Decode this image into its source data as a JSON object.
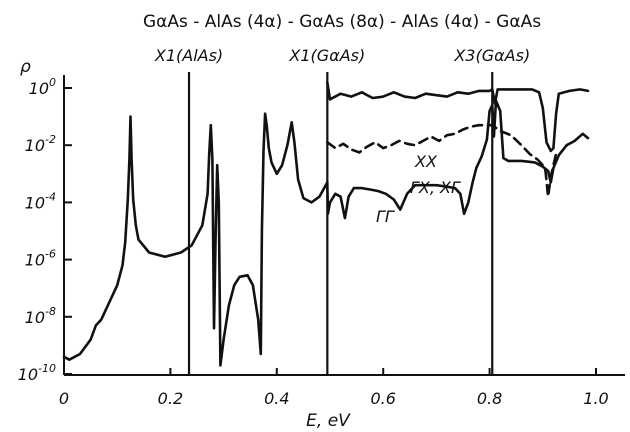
{
  "chart_data": {
    "type": "line",
    "title": "GαAs - AlAs (4α) - GαAs (8α) - AlAs (4α) - GαAs",
    "xlabel": "E, eV",
    "ylabel": "ρ",
    "xlim": [
      0,
      1.0
    ],
    "ylim_log10": [
      -10,
      0
    ],
    "y_scale": "log",
    "x_ticks": [
      {
        "value": 0,
        "label": "0"
      },
      {
        "value": 0.2,
        "label": "0.2"
      },
      {
        "value": 0.4,
        "label": "0.4"
      },
      {
        "value": 0.6,
        "label": "0.6"
      },
      {
        "value": 0.8,
        "label": "0.8"
      },
      {
        "value": 1.0,
        "label": "1.0"
      }
    ],
    "y_ticks": [
      {
        "exp": 0,
        "base": "10",
        "sup": "0"
      },
      {
        "exp": -2,
        "base": "10",
        "sup": "-2"
      },
      {
        "exp": -4,
        "base": "10",
        "sup": "-4"
      },
      {
        "exp": -6,
        "base": "10",
        "sup": "-6"
      },
      {
        "exp": -8,
        "base": "10",
        "sup": "-8"
      },
      {
        "exp": -10,
        "base": "10",
        "sup": "-10"
      }
    ],
    "vertical_lines": [
      {
        "x": 0.235,
        "label": "X1(AlAs)"
      },
      {
        "x": 0.495,
        "label": "X1(GαAs)"
      },
      {
        "x": 0.805,
        "label": "X3(GαAs)"
      }
    ],
    "annotations": [
      "XX",
      "ΓX, XΓ",
      "ΓΓ"
    ],
    "series": [
      {
        "name": "ΓΓ",
        "style": "solid",
        "points": [
          [
            0.0,
            -9.4
          ],
          [
            0.01,
            -9.5
          ],
          [
            0.03,
            -9.3
          ],
          [
            0.05,
            -8.8
          ],
          [
            0.06,
            -8.3
          ],
          [
            0.07,
            -8.1
          ],
          [
            0.085,
            -7.5
          ],
          [
            0.1,
            -6.9
          ],
          [
            0.11,
            -6.2
          ],
          [
            0.115,
            -5.4
          ],
          [
            0.12,
            -3.9
          ],
          [
            0.123,
            -2.5
          ],
          [
            0.125,
            -1.0
          ],
          [
            0.127,
            -2.5
          ],
          [
            0.13,
            -3.9
          ],
          [
            0.135,
            -4.8
          ],
          [
            0.14,
            -5.3
          ],
          [
            0.16,
            -5.75
          ],
          [
            0.19,
            -5.9
          ],
          [
            0.22,
            -5.75
          ],
          [
            0.24,
            -5.5
          ],
          [
            0.26,
            -4.8
          ],
          [
            0.27,
            -3.7
          ],
          [
            0.273,
            -2.3
          ],
          [
            0.276,
            -1.3
          ],
          [
            0.279,
            -2.5
          ],
          [
            0.282,
            -8.4
          ],
          [
            0.285,
            -5.2
          ],
          [
            0.288,
            -2.7
          ],
          [
            0.291,
            -4.0
          ],
          [
            0.294,
            -9.7
          ],
          [
            0.3,
            -8.8
          ],
          [
            0.31,
            -7.6
          ],
          [
            0.32,
            -6.9
          ],
          [
            0.33,
            -6.6
          ],
          [
            0.345,
            -6.55
          ],
          [
            0.355,
            -6.9
          ],
          [
            0.365,
            -8.1
          ],
          [
            0.37,
            -9.3
          ],
          [
            0.372,
            -5.0
          ],
          [
            0.375,
            -2.2
          ],
          [
            0.378,
            -0.9
          ],
          [
            0.381,
            -1.3
          ],
          [
            0.385,
            -2.1
          ],
          [
            0.39,
            -2.6
          ],
          [
            0.4,
            -3.0
          ],
          [
            0.41,
            -2.7
          ],
          [
            0.42,
            -2.0
          ],
          [
            0.428,
            -1.2
          ],
          [
            0.433,
            -1.9
          ],
          [
            0.44,
            -3.2
          ],
          [
            0.45,
            -3.85
          ],
          [
            0.465,
            -4.0
          ],
          [
            0.48,
            -3.8
          ],
          [
            0.495,
            -3.3
          ],
          [
            0.496,
            -4.4
          ],
          [
            0.5,
            -4.0
          ],
          [
            0.51,
            -3.7
          ],
          [
            0.52,
            -3.8
          ],
          [
            0.528,
            -4.55
          ],
          [
            0.535,
            -3.8
          ],
          [
            0.545,
            -3.5
          ],
          [
            0.56,
            -3.5
          ],
          [
            0.575,
            -3.55
          ],
          [
            0.59,
            -3.6
          ],
          [
            0.605,
            -3.7
          ],
          [
            0.62,
            -3.9
          ],
          [
            0.632,
            -4.25
          ],
          [
            0.645,
            -3.7
          ],
          [
            0.66,
            -3.4
          ],
          [
            0.68,
            -3.4
          ],
          [
            0.7,
            -3.4
          ],
          [
            0.72,
            -3.45
          ],
          [
            0.735,
            -3.5
          ],
          [
            0.745,
            -3.7
          ],
          [
            0.752,
            -4.4
          ],
          [
            0.76,
            -4.0
          ],
          [
            0.768,
            -3.3
          ],
          [
            0.775,
            -2.8
          ],
          [
            0.785,
            -2.4
          ],
          [
            0.795,
            -1.8
          ],
          [
            0.8,
            -0.8
          ],
          [
            0.805,
            -0.6
          ],
          [
            0.808,
            -1.7
          ],
          [
            0.812,
            -0.45
          ],
          [
            0.82,
            -0.8
          ],
          [
            0.826,
            -2.45
          ],
          [
            0.835,
            -2.55
          ],
          [
            0.86,
            -2.55
          ],
          [
            0.885,
            -2.6
          ],
          [
            0.9,
            -2.75
          ],
          [
            0.91,
            -2.9
          ],
          [
            0.915,
            -3.3
          ],
          [
            0.92,
            -2.8
          ],
          [
            0.93,
            -2.35
          ],
          [
            0.945,
            -2.0
          ],
          [
            0.96,
            -1.85
          ],
          [
            0.975,
            -1.6
          ],
          [
            0.985,
            -1.75
          ]
        ]
      },
      {
        "name": "XX",
        "style": "solid",
        "points": [
          [
            0.495,
            0.2
          ],
          [
            0.5,
            -0.4
          ],
          [
            0.52,
            -0.2
          ],
          [
            0.54,
            -0.3
          ],
          [
            0.56,
            -0.15
          ],
          [
            0.58,
            -0.35
          ],
          [
            0.6,
            -0.3
          ],
          [
            0.62,
            -0.15
          ],
          [
            0.64,
            -0.3
          ],
          [
            0.66,
            -0.35
          ],
          [
            0.68,
            -0.2
          ],
          [
            0.7,
            -0.25
          ],
          [
            0.72,
            -0.3
          ],
          [
            0.74,
            -0.15
          ],
          [
            0.76,
            -0.2
          ],
          [
            0.78,
            -0.1
          ],
          [
            0.8,
            -0.1
          ],
          [
            0.805,
            -0.05
          ],
          [
            0.81,
            -0.55
          ],
          [
            0.815,
            -0.05
          ],
          [
            0.83,
            -0.05
          ],
          [
            0.86,
            -0.05
          ],
          [
            0.88,
            -0.05
          ],
          [
            0.893,
            -0.15
          ],
          [
            0.9,
            -0.7
          ],
          [
            0.907,
            -1.9
          ],
          [
            0.915,
            -2.2
          ],
          [
            0.92,
            -2.1
          ],
          [
            0.925,
            -0.9
          ],
          [
            0.93,
            -0.2
          ],
          [
            0.95,
            -0.1
          ],
          [
            0.97,
            -0.05
          ],
          [
            0.985,
            -0.1
          ]
        ]
      },
      {
        "name": "ΓX, XΓ",
        "style": "dashed",
        "points": [
          [
            0.495,
            -1.9
          ],
          [
            0.51,
            -2.1
          ],
          [
            0.525,
            -1.95
          ],
          [
            0.54,
            -2.15
          ],
          [
            0.555,
            -2.25
          ],
          [
            0.57,
            -2.05
          ],
          [
            0.585,
            -1.9
          ],
          [
            0.6,
            -2.1
          ],
          [
            0.615,
            -2.0
          ],
          [
            0.63,
            -1.85
          ],
          [
            0.645,
            -1.95
          ],
          [
            0.66,
            -2.0
          ],
          [
            0.675,
            -1.85
          ],
          [
            0.69,
            -1.7
          ],
          [
            0.705,
            -1.85
          ],
          [
            0.72,
            -1.65
          ],
          [
            0.735,
            -1.6
          ],
          [
            0.75,
            -1.45
          ],
          [
            0.765,
            -1.35
          ],
          [
            0.78,
            -1.3
          ],
          [
            0.795,
            -1.3
          ],
          [
            0.805,
            -1.3
          ],
          [
            0.82,
            -1.5
          ],
          [
            0.84,
            -1.65
          ],
          [
            0.86,
            -2.0
          ],
          [
            0.875,
            -2.3
          ],
          [
            0.89,
            -2.5
          ],
          [
            0.9,
            -2.7
          ],
          [
            0.905,
            -2.9
          ],
          [
            0.91,
            -3.8
          ],
          [
            0.915,
            -3.1
          ],
          [
            0.92,
            -2.7
          ],
          [
            0.925,
            -2.3
          ]
        ]
      }
    ]
  }
}
